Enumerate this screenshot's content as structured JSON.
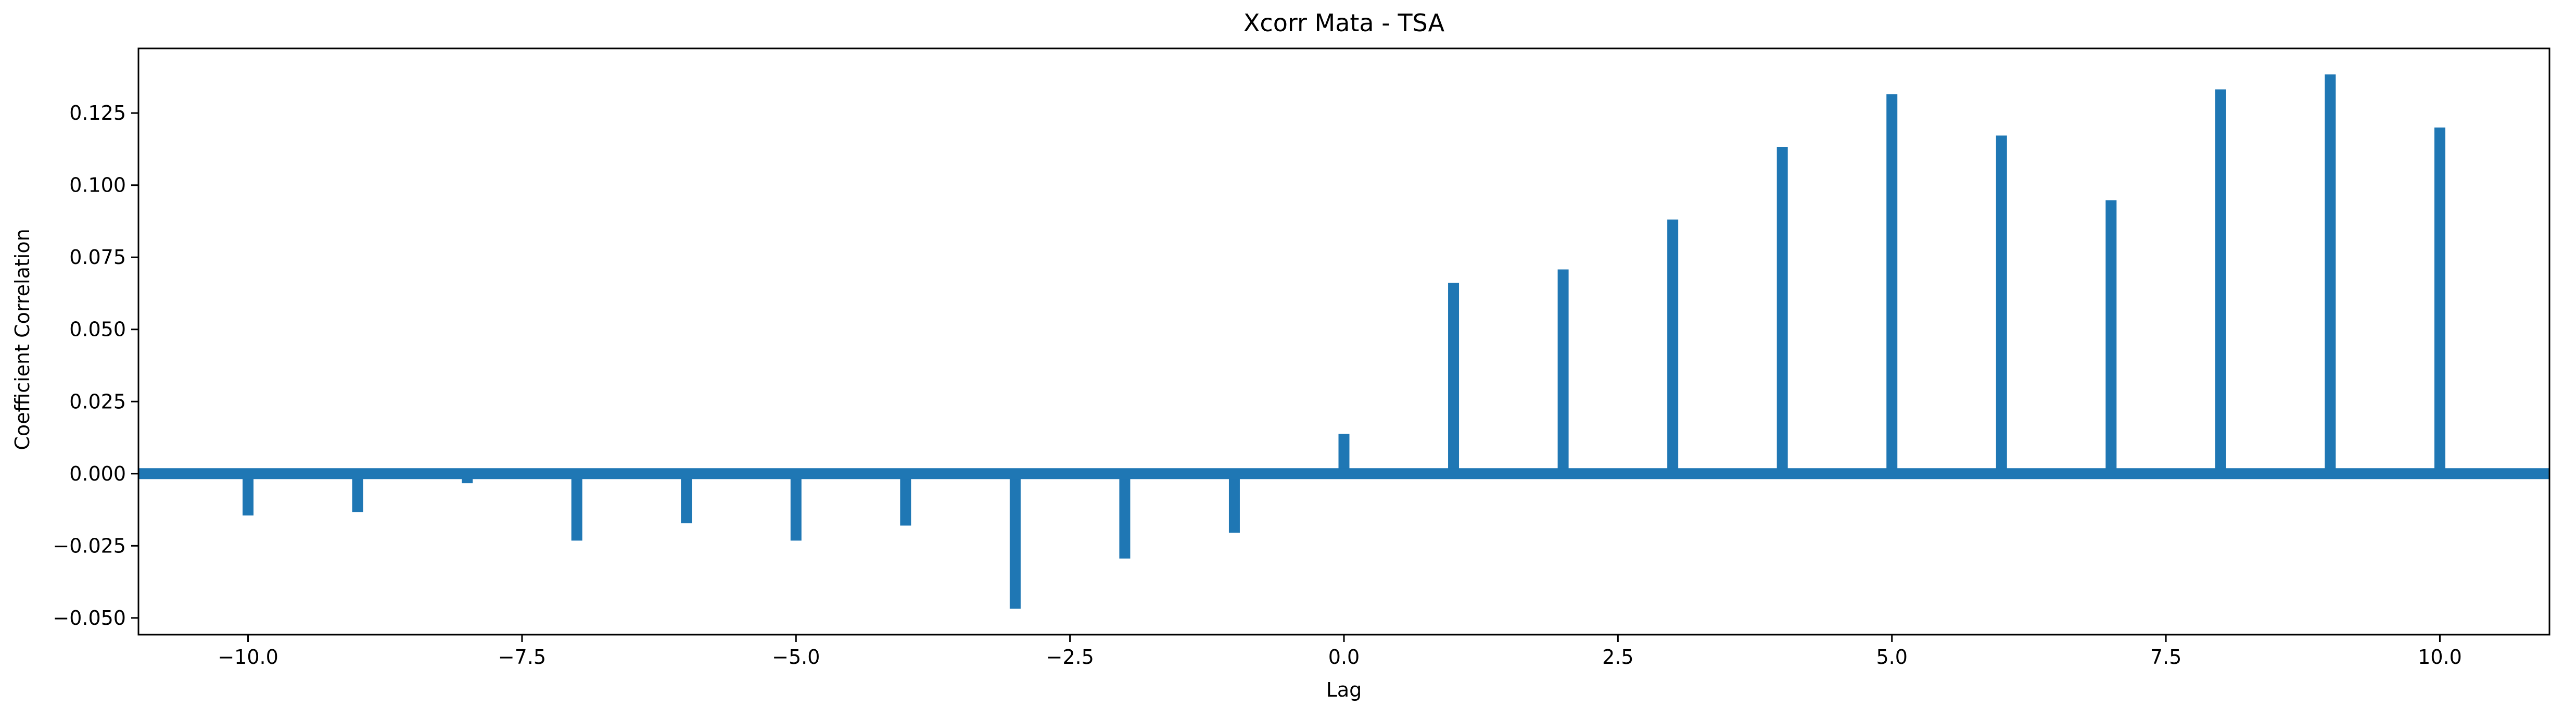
{
  "chart_data": {
    "type": "bar",
    "title": "Xcorr Mata - TSA",
    "xlabel": "Lag",
    "ylabel": "Coefficient Correlation",
    "x": [
      -10,
      -9,
      -8,
      -7,
      -6,
      -5,
      -4,
      -3,
      -2,
      -1,
      0,
      1,
      2,
      3,
      4,
      5,
      6,
      7,
      8,
      9,
      10
    ],
    "values": [
      -0.0145,
      -0.0133,
      -0.0033,
      -0.0232,
      -0.0172,
      -0.0232,
      -0.018,
      -0.0468,
      -0.0294,
      -0.0205,
      0.0138,
      0.0662,
      0.0708,
      0.0881,
      0.1133,
      0.1315,
      0.1172,
      0.0948,
      0.1332,
      0.1384,
      0.12
    ],
    "xlim": [
      -11,
      11
    ],
    "ylim": [
      -0.0558,
      0.1474
    ],
    "xticks": [
      -10.0,
      -7.5,
      -5.0,
      -2.5,
      0.0,
      2.5,
      5.0,
      7.5,
      10.0
    ],
    "xtick_labels": [
      "−10.0",
      "−7.5",
      "−5.0",
      "−2.5",
      "0.0",
      "2.5",
      "5.0",
      "7.5",
      "10.0"
    ],
    "yticks": [
      -0.05,
      -0.025,
      0.0,
      0.025,
      0.05,
      0.075,
      0.1,
      0.125
    ],
    "ytick_labels": [
      "−0.050",
      "−0.025",
      "0.000",
      "0.025",
      "0.050",
      "0.075",
      "0.100",
      "0.125"
    ],
    "baseline": 0,
    "grid": false,
    "color": "#1f77b4"
  }
}
